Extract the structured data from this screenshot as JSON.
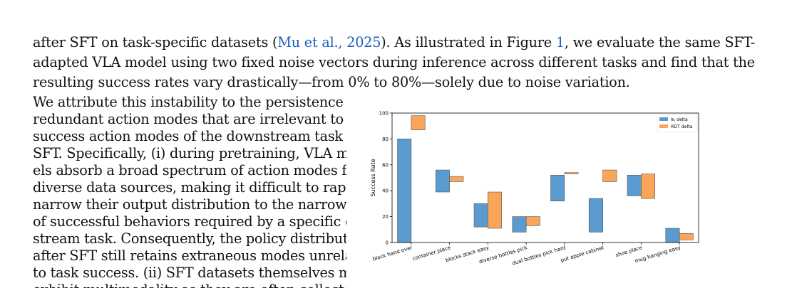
{
  "top_paragraph": {
    "line1_pre": "after SFT on task-specific datasets (",
    "cite1": "Mu et al., 2025",
    "line1_mid": "). As illustrated in Figure ",
    "fig_ref": "1",
    "line1_post": ", we evaluate the same SFT-",
    "line2": "adapted VLA model using two fixed noise vectors during inference across different tasks and find that the",
    "line3": "resulting success rates vary drastically—from 0% to 80%—solely due to noise variation."
  },
  "left_paragraph": {
    "lines": [
      "We attribute this instability to the persistence of",
      "redundant action modes that are irrelevant to the",
      "success action modes of the downstream task after",
      "SFT. Specifically, (i) during pretraining, VLA mod-",
      "els absorb a broad spectrum of action modes from",
      "diverse data sources, making it difficult to rapidly",
      "narrow their output distribution to the narrow set",
      "of successful behaviors required by a specific down-",
      "stream task. Consequently, the policy distribution",
      "after SFT still retains extraneous modes unrelated",
      "to task success. (ii) SFT datasets themselves may",
      "exhibit multimodality as they are often collected"
    ]
  },
  "chart_data": {
    "type": "bar",
    "subtype": "floating range bars",
    "categories": [
      "block hand over",
      "container place",
      "blocks stack easy",
      "diverse bottles pick",
      "dual bottles pick hard",
      "put apple cabinet",
      "shoe place",
      "mug hanging easy"
    ],
    "ylabel": "Success Rate",
    "xlabel": "",
    "ylim": [
      0,
      100
    ],
    "yticks": [
      0,
      20,
      40,
      60,
      80,
      100
    ],
    "legend_position": "top-right",
    "series": [
      {
        "name": "π₀ delta",
        "color": "#5b9bd0",
        "ranges": [
          [
            0,
            80
          ],
          [
            39,
            56
          ],
          [
            12,
            30
          ],
          [
            8,
            20
          ],
          [
            32,
            52
          ],
          [
            8,
            34
          ],
          [
            36,
            52
          ],
          [
            0,
            11
          ]
        ]
      },
      {
        "name": "RDT delta",
        "color": "#f9a55a",
        "ranges": [
          [
            87,
            98
          ],
          [
            47,
            51
          ],
          [
            11,
            39
          ],
          [
            13,
            20
          ],
          [
            53,
            54
          ],
          [
            47,
            56
          ],
          [
            34,
            53
          ],
          [
            2,
            7
          ]
        ]
      }
    ]
  }
}
